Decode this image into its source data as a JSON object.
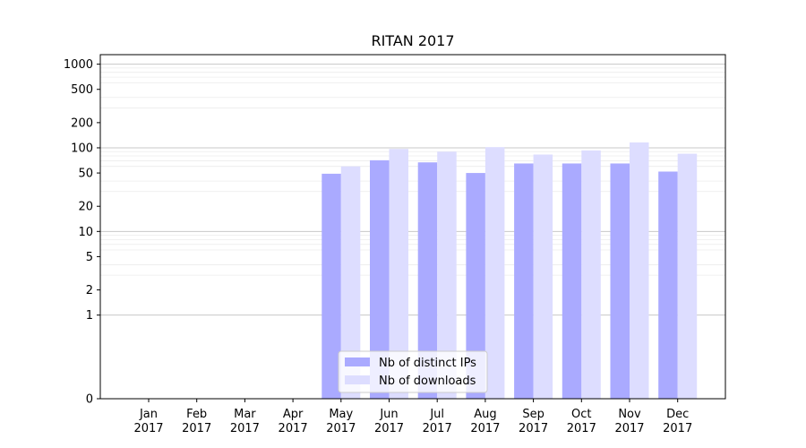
{
  "chart_data": {
    "type": "bar",
    "title": "RITAN 2017",
    "xlabel": "",
    "ylabel": "",
    "y_scale": "symlog",
    "ylim": [
      0,
      1300
    ],
    "y_ticks": [
      0,
      1,
      2,
      5,
      10,
      20,
      50,
      100,
      200,
      500,
      1000
    ],
    "grid": true,
    "legend_position": "bottom-center",
    "categories": [
      [
        "Jan",
        "2017"
      ],
      [
        "Feb",
        "2017"
      ],
      [
        "Mar",
        "2017"
      ],
      [
        "Apr",
        "2017"
      ],
      [
        "May",
        "2017"
      ],
      [
        "Jun",
        "2017"
      ],
      [
        "Jul",
        "2017"
      ],
      [
        "Aug",
        "2017"
      ],
      [
        "Sep",
        "2017"
      ],
      [
        "Oct",
        "2017"
      ],
      [
        "Nov",
        "2017"
      ],
      [
        "Dec",
        "2017"
      ]
    ],
    "series": [
      {
        "name": "Nb of distinct IPs",
        "color": "#aaaaff",
        "values": [
          0,
          0,
          0,
          0,
          49,
          71,
          67,
          50,
          65,
          65,
          65,
          52
        ]
      },
      {
        "name": "Nb of downloads",
        "color": "#ddddff",
        "values": [
          0,
          0,
          0,
          0,
          60,
          97,
          90,
          102,
          83,
          93,
          116,
          85
        ]
      }
    ]
  }
}
